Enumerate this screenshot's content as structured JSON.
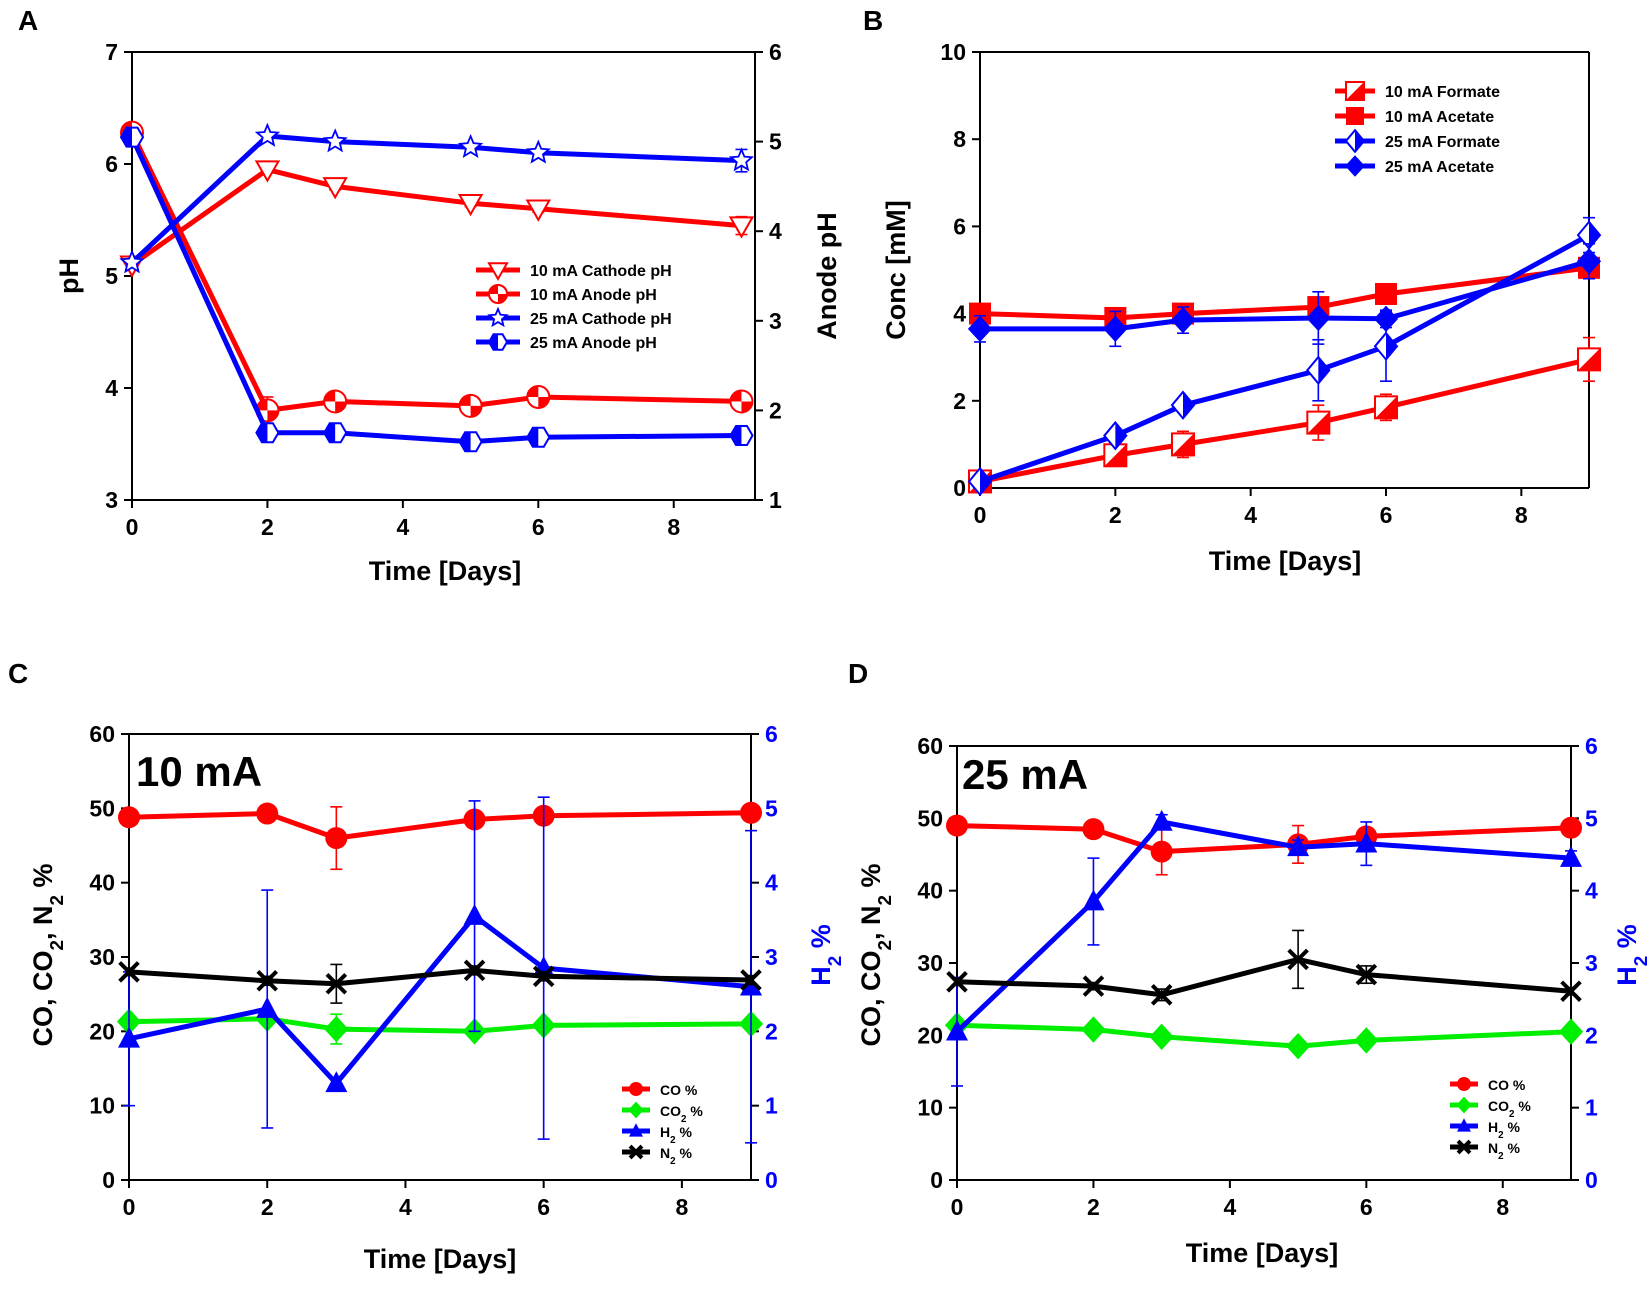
{
  "chart_data": [
    {
      "panel": "A",
      "type": "line",
      "xlabel": "Time [Days]",
      "ylabel": "pH",
      "y2label": "Anode pH",
      "xlim": [
        0,
        9.2
      ],
      "xticks": [
        0,
        2,
        4,
        6,
        8
      ],
      "ylim": [
        3,
        7
      ],
      "yticks": [
        3,
        4,
        5,
        6,
        7
      ],
      "y2lim": [
        1,
        6
      ],
      "y2ticks": [
        1,
        2,
        3,
        4,
        5,
        6
      ],
      "legend_position": "center-right",
      "series": [
        {
          "name": "10 mA Cathode pH",
          "axis": "left",
          "color": "#ff0000",
          "marker": "triangle-down-open",
          "x": [
            0,
            2,
            3,
            5,
            6,
            9
          ],
          "y": [
            5.1,
            5.95,
            5.8,
            5.65,
            5.6,
            5.45
          ],
          "err": [
            0.03,
            0.03,
            0.03,
            0.03,
            0.03,
            0.08
          ]
        },
        {
          "name": "10 mA Anode pH",
          "axis": "right",
          "color": "#ff0000",
          "marker": "circle-quarter",
          "x": [
            0,
            2,
            3,
            5,
            6,
            9
          ],
          "y": [
            5.1,
            2.0,
            2.1,
            2.05,
            2.15,
            2.1
          ],
          "err": [
            0.05,
            0.15,
            0.05,
            0.05,
            0.05,
            0.05
          ]
        },
        {
          "name": "25 mA Cathode pH",
          "axis": "left",
          "color": "#0000ff",
          "marker": "star-open",
          "x": [
            0,
            2,
            3,
            5,
            6,
            9
          ],
          "y": [
            5.12,
            6.25,
            6.2,
            6.15,
            6.1,
            6.03
          ],
          "err": [
            0.03,
            0.03,
            0.03,
            0.03,
            0.03,
            0.1
          ]
        },
        {
          "name": "25 mA Anode pH",
          "axis": "right",
          "color": "#0000ff",
          "marker": "hexagon-half",
          "x": [
            0,
            2,
            3,
            5,
            6,
            9
          ],
          "y": [
            5.05,
            1.75,
            1.75,
            1.65,
            1.7,
            1.72
          ],
          "err": [
            0.05,
            0.05,
            0.05,
            0.05,
            0.05,
            0.05
          ]
        }
      ]
    },
    {
      "panel": "B",
      "type": "line",
      "xlabel": "Time [Days]",
      "ylabel": "Conc [mM]",
      "xlim": [
        0,
        9
      ],
      "xticks": [
        0,
        2,
        4,
        6,
        8
      ],
      "ylim": [
        0,
        10
      ],
      "yticks": [
        0,
        2,
        4,
        6,
        8,
        10
      ],
      "legend_position": "top-right",
      "series": [
        {
          "name": "10 mA Formate",
          "color": "#ff0000",
          "marker": "square-half",
          "x": [
            0,
            2,
            3,
            5,
            6,
            9
          ],
          "y": [
            0.15,
            0.75,
            1.0,
            1.5,
            1.85,
            2.95
          ],
          "err": [
            0.05,
            0.15,
            0.3,
            0.4,
            0.3,
            0.5
          ]
        },
        {
          "name": "10 mA Acetate",
          "color": "#ff0000",
          "marker": "square-filled",
          "x": [
            0,
            2,
            3,
            5,
            6,
            9
          ],
          "y": [
            4.0,
            3.9,
            4.0,
            4.15,
            4.45,
            5.05
          ],
          "err": [
            0.05,
            0.05,
            0.1,
            0.1,
            0.15,
            0.2
          ]
        },
        {
          "name": "25 mA Formate",
          "color": "#0000ff",
          "marker": "diamond-half",
          "x": [
            0,
            2,
            3,
            5,
            6,
            9
          ],
          "y": [
            0.15,
            1.2,
            1.9,
            2.7,
            3.25,
            5.8
          ],
          "err": [
            0.05,
            0.1,
            0.1,
            0.7,
            0.8,
            0.4
          ]
        },
        {
          "name": "25 mA Acetate",
          "color": "#0000ff",
          "marker": "diamond-filled",
          "x": [
            0,
            2,
            3,
            5,
            6,
            9
          ],
          "y": [
            3.65,
            3.65,
            3.85,
            3.9,
            3.88,
            5.2
          ],
          "err": [
            0.3,
            0.4,
            0.3,
            0.6,
            0.2,
            0.4
          ]
        }
      ]
    },
    {
      "panel": "C",
      "type": "line",
      "annotation": "10 mA",
      "xlabel": "Time [Days]",
      "ylabel": "CO, CO2, N2 %",
      "y2label": "H2 %",
      "xlim": [
        0,
        9
      ],
      "xticks": [
        0,
        2,
        4,
        6,
        8
      ],
      "ylim": [
        0,
        60
      ],
      "yticks": [
        0,
        10,
        20,
        30,
        40,
        50,
        60
      ],
      "y2lim": [
        0,
        6
      ],
      "y2ticks": [
        0,
        1,
        2,
        3,
        4,
        5,
        6
      ],
      "legend_position": "bottom-right",
      "series": [
        {
          "name": "CO %",
          "axis": "left",
          "color": "#ff0000",
          "marker": "circle",
          "x": [
            0,
            2,
            3,
            5,
            6,
            9
          ],
          "y": [
            48.8,
            49.3,
            46.0,
            48.5,
            49.0,
            49.4
          ],
          "err": [
            0.5,
            0.5,
            4.2,
            0.5,
            0.5,
            0.5
          ]
        },
        {
          "name": "CO2 %",
          "axis": "left",
          "color": "#00ee00",
          "marker": "diamond",
          "x": [
            0,
            2,
            3,
            5,
            6,
            9
          ],
          "y": [
            21.3,
            21.7,
            20.3,
            20.0,
            20.8,
            21.0
          ],
          "err": [
            0.5,
            0.5,
            2.0,
            0.5,
            0.5,
            0.5
          ]
        },
        {
          "name": "H2 %",
          "axis": "right",
          "color": "#0000ff",
          "marker": "triangle",
          "x": [
            0,
            2,
            3,
            5,
            6,
            9
          ],
          "y": [
            1.9,
            2.3,
            1.3,
            3.55,
            2.85,
            2.6
          ],
          "err": [
            0.9,
            1.6,
            0.0,
            1.55,
            2.3,
            2.1
          ]
        },
        {
          "name": "N2 %",
          "axis": "left",
          "color": "#000000",
          "marker": "x",
          "x": [
            0,
            2,
            3,
            5,
            6,
            9
          ],
          "y": [
            28.0,
            26.8,
            26.4,
            28.2,
            27.4,
            26.9
          ],
          "err": [
            0.5,
            0.6,
            2.6,
            0.6,
            0.6,
            0.6
          ]
        }
      ]
    },
    {
      "panel": "D",
      "type": "line",
      "annotation": "25 mA",
      "xlabel": "Time [Days]",
      "ylabel": "CO, CO2, N2 %",
      "y2label": "H2 %",
      "xlim": [
        0,
        9
      ],
      "xticks": [
        0,
        2,
        4,
        6,
        8
      ],
      "ylim": [
        0,
        60
      ],
      "yticks": [
        0,
        10,
        20,
        30,
        40,
        50,
        60
      ],
      "y2lim": [
        0,
        6
      ],
      "y2ticks": [
        0,
        1,
        2,
        3,
        4,
        5,
        6
      ],
      "legend_position": "bottom-right",
      "series": [
        {
          "name": "CO %",
          "axis": "left",
          "color": "#ff0000",
          "marker": "circle",
          "x": [
            0,
            2,
            3,
            5,
            6,
            9
          ],
          "y": [
            49.0,
            48.5,
            45.4,
            46.4,
            47.5,
            48.7
          ],
          "err": [
            0.5,
            0.5,
            3.2,
            2.6,
            0.8,
            0.5
          ]
        },
        {
          "name": "CO2 %",
          "axis": "left",
          "color": "#00ee00",
          "marker": "diamond",
          "x": [
            0,
            2,
            3,
            5,
            6,
            9
          ],
          "y": [
            21.4,
            20.8,
            19.8,
            18.5,
            19.3,
            20.5
          ],
          "err": [
            0.5,
            0.5,
            0.5,
            0.5,
            0.5,
            0.5
          ]
        },
        {
          "name": "H2 %",
          "axis": "right",
          "color": "#0000ff",
          "marker": "triangle",
          "x": [
            0,
            2,
            3,
            5,
            6,
            9
          ],
          "y": [
            2.05,
            3.85,
            4.95,
            4.6,
            4.65,
            4.45
          ],
          "err": [
            0.75,
            0.6,
            0.1,
            0.1,
            0.3,
            0.1
          ]
        },
        {
          "name": "N2 %",
          "axis": "left",
          "color": "#000000",
          "marker": "x",
          "x": [
            0,
            2,
            3,
            5,
            6,
            9
          ],
          "y": [
            27.4,
            26.8,
            25.6,
            30.5,
            28.4,
            26.1
          ],
          "err": [
            0.5,
            0.5,
            0.8,
            4.0,
            1.2,
            0.5
          ]
        }
      ]
    }
  ]
}
